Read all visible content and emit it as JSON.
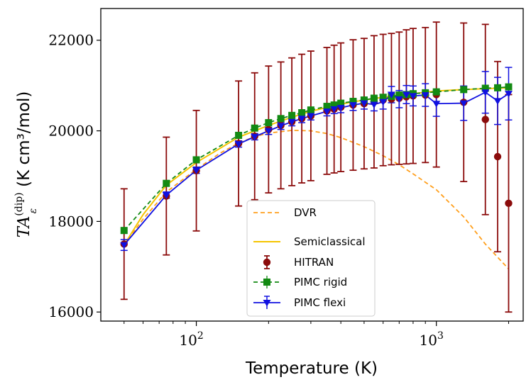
{
  "chart_data": {
    "type": "line",
    "xlabel": "Temperature (K)",
    "ylabel_prefix": "TA",
    "ylabel_superscript": "(dip)",
    "ylabel_subscript": "ε",
    "ylabel_units": "(K cm³/mol)",
    "x_scale": "log",
    "xlim": [
      40,
      2300
    ],
    "ylim": [
      15800,
      22700
    ],
    "y_ticks": [
      16000,
      18000,
      20000,
      22000
    ],
    "y_tick_labels": [
      "16000",
      "18000",
      "20000",
      "22000"
    ],
    "x_major_ticks": [
      100,
      1000
    ],
    "x_major_base": "10",
    "x_major_exponents": [
      "2",
      "3"
    ],
    "x_minor_ticks": [
      50,
      60,
      70,
      80,
      90,
      200,
      300,
      400,
      500,
      600,
      700,
      800,
      900,
      2000
    ],
    "legend_position": "lower-center",
    "series": [
      {
        "name": "DVR",
        "style": "dashed",
        "color": "#ff9f1c",
        "x": [
          50,
          60,
          75,
          100,
          125,
          150,
          175,
          200,
          250,
          300,
          350,
          400,
          500,
          600,
          700,
          800,
          1000,
          1300,
          1600,
          2000
        ],
        "y": [
          17480,
          18050,
          18650,
          19150,
          19500,
          19730,
          19870,
          19950,
          20010,
          20000,
          19940,
          19850,
          19650,
          19450,
          19250,
          19050,
          18700,
          18100,
          17500,
          16950
        ]
      },
      {
        "name": "Semiclassical",
        "style": "solid",
        "color": "#f5c400",
        "x": [
          50,
          60,
          75,
          100,
          150,
          200,
          250,
          300,
          400,
          500,
          600,
          700,
          800,
          1000,
          1300,
          1600,
          2000
        ],
        "y": [
          17480,
          18150,
          18800,
          19300,
          19860,
          20120,
          20300,
          20430,
          20590,
          20680,
          20740,
          20780,
          20820,
          20880,
          20910,
          20930,
          20950
        ]
      },
      {
        "name": "HITRAN",
        "style": "errorbar",
        "color": "#8b0b0b",
        "x": [
          50,
          75,
          100,
          150,
          175,
          200,
          225,
          250,
          275,
          300,
          350,
          375,
          400,
          450,
          500,
          550,
          600,
          650,
          700,
          750,
          800,
          900,
          1000,
          1300,
          1600,
          1800,
          2000
        ],
        "y": [
          17500,
          18560,
          19120,
          19720,
          19880,
          20030,
          20120,
          20200,
          20270,
          20330,
          20440,
          20480,
          20520,
          20570,
          20600,
          20640,
          20680,
          20700,
          20720,
          20750,
          20770,
          20790,
          20800,
          20630,
          20250,
          19430,
          18400
        ],
        "err": [
          1220,
          1300,
          1330,
          1380,
          1400,
          1400,
          1400,
          1410,
          1420,
          1430,
          1400,
          1410,
          1420,
          1440,
          1440,
          1460,
          1450,
          1450,
          1460,
          1480,
          1490,
          1490,
          1600,
          1750,
          2100,
          2100,
          2400
        ]
      },
      {
        "name": "PIMC rigid",
        "style": "dashed-square",
        "color": "#138a13",
        "x": [
          50,
          75,
          100,
          150,
          175,
          200,
          225,
          250,
          275,
          300,
          350,
          375,
          400,
          450,
          500,
          550,
          600,
          650,
          700,
          750,
          800,
          900,
          1000,
          1300,
          1600,
          1800,
          2000
        ],
        "y": [
          17800,
          18840,
          19360,
          19900,
          20060,
          20180,
          20270,
          20340,
          20400,
          20460,
          20540,
          20570,
          20610,
          20650,
          20680,
          20720,
          20740,
          20760,
          20790,
          20800,
          20820,
          20840,
          20860,
          20910,
          20940,
          20950,
          20970
        ],
        "err": [
          60,
          50,
          50,
          50,
          50,
          50,
          50,
          50,
          50,
          50,
          50,
          50,
          50,
          50,
          50,
          50,
          50,
          50,
          50,
          50,
          50,
          50,
          60,
          60,
          60,
          60,
          60
        ]
      },
      {
        "name": "PIMC flexi",
        "style": "solid-triangle",
        "color": "#1010e0",
        "x": [
          50,
          75,
          100,
          150,
          175,
          200,
          225,
          250,
          275,
          300,
          350,
          375,
          400,
          450,
          500,
          550,
          600,
          650,
          700,
          750,
          800,
          900,
          1000,
          1300,
          1600,
          1800,
          2000
        ],
        "y": [
          17480,
          18580,
          19130,
          19710,
          19870,
          20000,
          20110,
          20200,
          20270,
          20330,
          20430,
          20480,
          20510,
          20570,
          20610,
          20580,
          20640,
          20800,
          20700,
          20800,
          20770,
          20790,
          20600,
          20610,
          20850,
          20660,
          20820
        ],
        "err": [
          120,
          70,
          70,
          70,
          70,
          80,
          80,
          90,
          90,
          90,
          100,
          100,
          110,
          120,
          130,
          140,
          160,
          180,
          190,
          200,
          220,
          250,
          280,
          380,
          460,
          520,
          580
        ]
      }
    ]
  }
}
